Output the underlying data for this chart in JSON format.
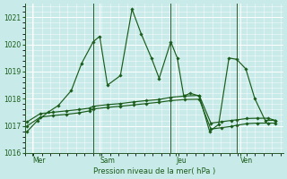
{
  "background_color": "#c8eae8",
  "grid_color": "#ffffff",
  "line_color": "#1a5c1a",
  "xlabel": "Pression niveau de la mer( hPa )",
  "ylim": [
    1016.0,
    1021.5
  ],
  "yticks": [
    1016,
    1017,
    1018,
    1019,
    1020,
    1021
  ],
  "day_labels": [
    "Mer",
    "Sam",
    "Jeu",
    "Ven"
  ],
  "vline_positions": [
    0.0,
    0.265,
    0.565,
    0.82
  ],
  "series1_x": [
    0.01,
    0.05,
    0.09,
    0.13,
    0.18,
    0.22,
    0.265,
    0.29,
    0.32,
    0.37,
    0.415,
    0.45,
    0.49,
    0.52,
    0.565,
    0.59,
    0.615,
    0.64,
    0.675,
    0.715,
    0.75,
    0.79,
    0.82,
    0.855,
    0.89,
    0.93,
    0.97
  ],
  "series1_y": [
    1016.8,
    1017.2,
    1017.5,
    1017.75,
    1018.3,
    1019.3,
    1020.1,
    1020.3,
    1018.5,
    1018.85,
    1021.3,
    1020.4,
    1019.5,
    1018.75,
    1020.1,
    1019.5,
    1018.1,
    1018.2,
    1018.1,
    1016.8,
    1017.05,
    1019.5,
    1019.45,
    1019.1,
    1018.0,
    1017.2,
    1017.2
  ],
  "series2_x": [
    0.01,
    0.06,
    0.11,
    0.16,
    0.21,
    0.25,
    0.265,
    0.32,
    0.37,
    0.42,
    0.47,
    0.52,
    0.565,
    0.62,
    0.675,
    0.72,
    0.76,
    0.8,
    0.82,
    0.86,
    0.9,
    0.94,
    0.97
  ],
  "series2_y": [
    1017.15,
    1017.45,
    1017.5,
    1017.55,
    1017.6,
    1017.65,
    1017.72,
    1017.78,
    1017.82,
    1017.88,
    1017.93,
    1017.97,
    1018.05,
    1018.1,
    1018.12,
    1017.1,
    1017.15,
    1017.2,
    1017.22,
    1017.27,
    1017.28,
    1017.28,
    1017.2
  ],
  "series3_x": [
    0.01,
    0.06,
    0.11,
    0.16,
    0.21,
    0.25,
    0.265,
    0.32,
    0.37,
    0.42,
    0.47,
    0.52,
    0.565,
    0.62,
    0.675,
    0.72,
    0.76,
    0.8,
    0.82,
    0.86,
    0.9,
    0.94,
    0.97
  ],
  "series3_y": [
    1017.0,
    1017.32,
    1017.38,
    1017.42,
    1017.48,
    1017.55,
    1017.62,
    1017.68,
    1017.72,
    1017.77,
    1017.82,
    1017.87,
    1017.93,
    1017.97,
    1017.98,
    1016.88,
    1016.93,
    1016.98,
    1017.02,
    1017.08,
    1017.1,
    1017.1,
    1017.1
  ]
}
